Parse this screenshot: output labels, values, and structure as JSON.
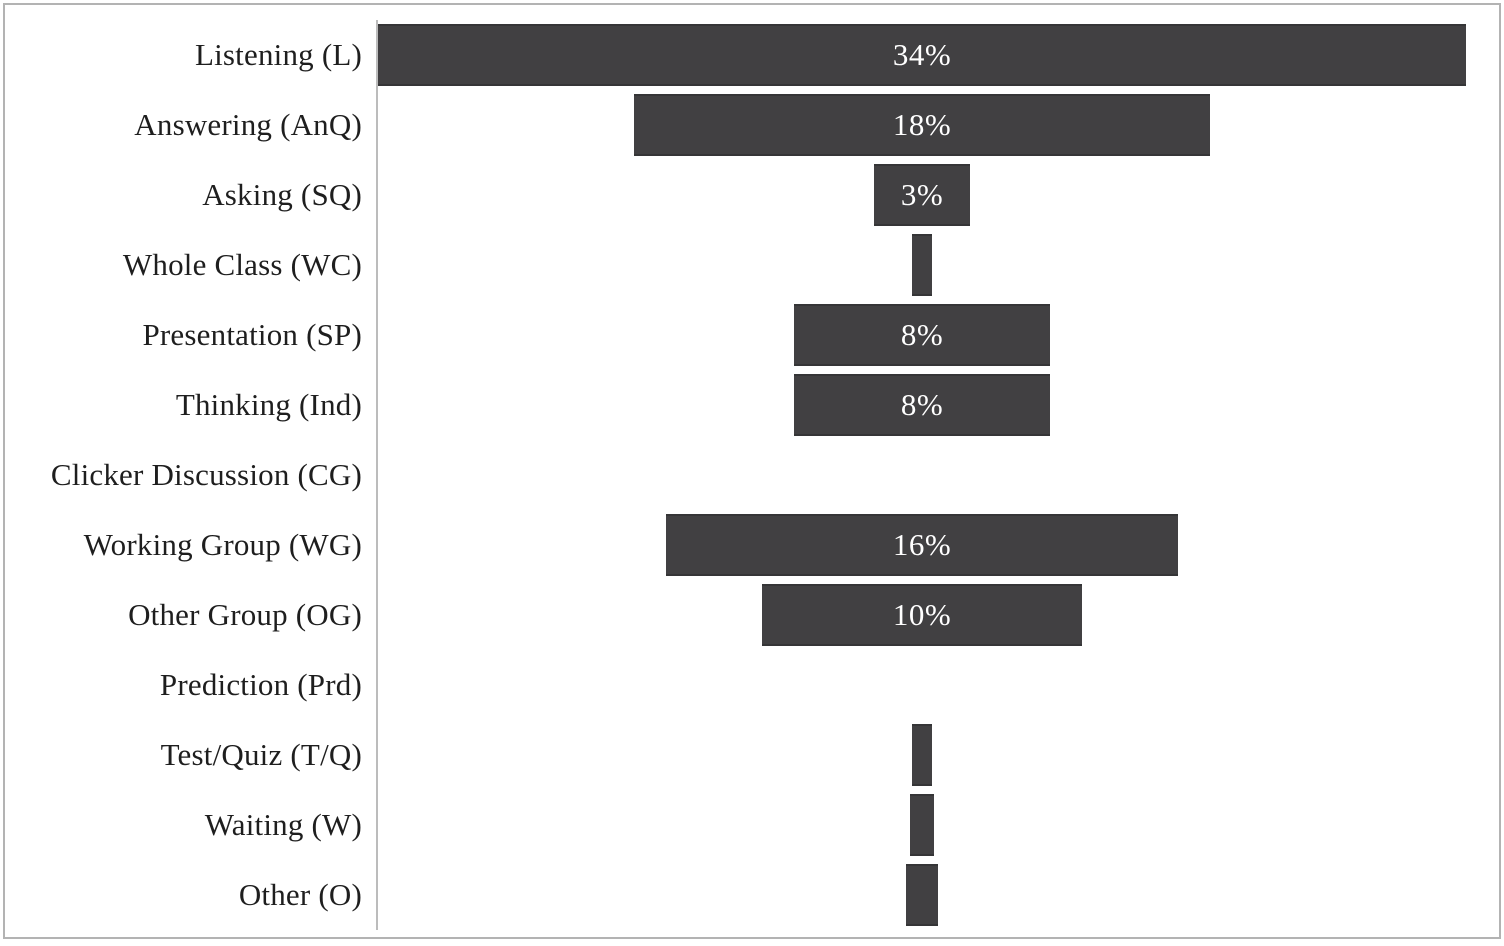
{
  "chart_data": {
    "type": "bar",
    "orientation": "horizontal",
    "style": "centered-funnel-bars",
    "title": "",
    "xlabel": "",
    "ylabel": "",
    "grid": false,
    "legend_position": "none",
    "categories": [
      "Listening (L)",
      "Answering (AnQ)",
      "Asking (SQ)",
      "Whole Class (WC)",
      "Presentation (SP)",
      "Thinking (Ind)",
      "Clicker Discussion (CG)",
      "Working Group (WG)",
      "Other Group (OG)",
      "Prediction (Prd)",
      "Test/Quiz (T/Q)",
      "Waiting (W)",
      "Other (O)"
    ],
    "values": [
      34,
      18,
      3,
      0.6,
      8,
      8,
      0,
      16,
      10,
      0,
      0.6,
      0.75,
      1
    ],
    "bar_labels": [
      "34%",
      "18%",
      "3%",
      "",
      "8%",
      "8%",
      "",
      "16%",
      "10%",
      "",
      "",
      "",
      ""
    ],
    "colors": {
      "bar_fill": "#414042",
      "bar_edge": "#353537",
      "bar_label_text": "#ffffff",
      "category_label_text": "#1e1e1e",
      "axis_line": "#bcbcbc",
      "frame_border": "#b3b3b3",
      "background": "#ffffff"
    }
  }
}
